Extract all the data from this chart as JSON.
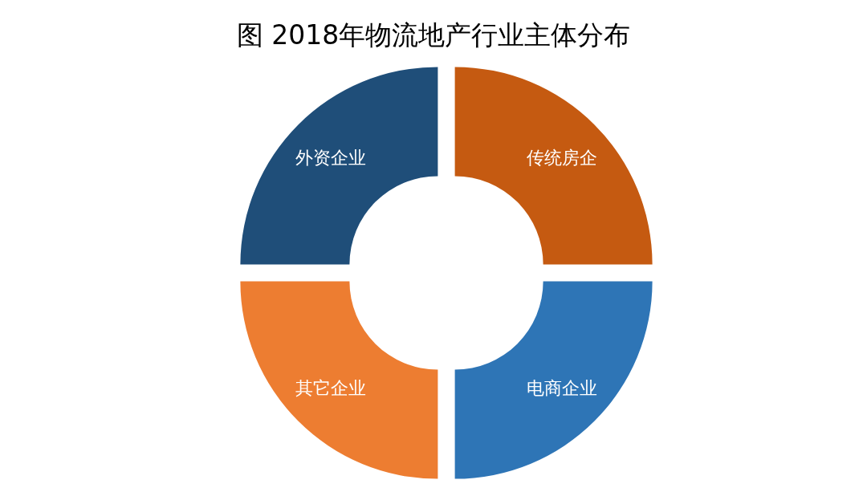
{
  "chart_data": {
    "type": "donut",
    "title": "图 2018年物流地产行业主体分布",
    "categories": [
      "传统房企",
      "电商企业",
      "其它企业",
      "外资企业"
    ],
    "values": [
      25,
      25,
      25,
      25
    ],
    "colors": [
      "#c55a11",
      "#2e75b6",
      "#ed7d31",
      "#1f4e79"
    ]
  }
}
